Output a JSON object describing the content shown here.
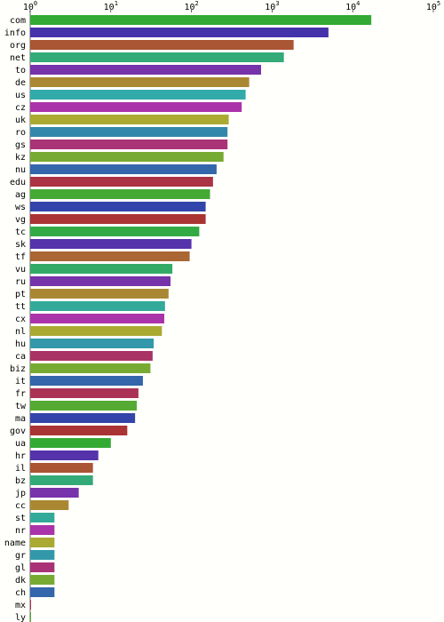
{
  "chart_data": {
    "type": "bar",
    "orientation": "horizontal",
    "x_scale": "log",
    "xlim": [
      1,
      100000
    ],
    "x_ticks": [
      {
        "base": "10",
        "exp": "0"
      },
      {
        "base": "10",
        "exp": "1"
      },
      {
        "base": "10",
        "exp": "2"
      },
      {
        "base": "10",
        "exp": "3"
      },
      {
        "base": "10",
        "exp": "4"
      },
      {
        "base": "10",
        "exp": "5"
      }
    ],
    "grid": false,
    "legend": "none",
    "title": "",
    "xlabel": "",
    "ylabel": "",
    "categories": [
      "com",
      "info",
      "org",
      "net",
      "to",
      "de",
      "us",
      "cz",
      "uk",
      "ro",
      "gs",
      "kz",
      "nu",
      "edu",
      "ag",
      "ws",
      "vg",
      "tc",
      "sk",
      "tf",
      "vu",
      "ru",
      "pt",
      "tt",
      "cx",
      "nl",
      "hu",
      "ca",
      "biz",
      "it",
      "fr",
      "tw",
      "ma",
      "gov",
      "ua",
      "hr",
      "il",
      "bz",
      "jp",
      "cc",
      "st",
      "nr",
      "name",
      "gr",
      "gl",
      "dk",
      "ch",
      "mx",
      "ly"
    ],
    "values": [
      17000,
      5000,
      1850,
      1400,
      730,
      520,
      470,
      420,
      290,
      280,
      280,
      250,
      205,
      185,
      170,
      150,
      150,
      125,
      100,
      95,
      58,
      55,
      52,
      47,
      46,
      43,
      34,
      33,
      31,
      25,
      22,
      21,
      20,
      16,
      10,
      7,
      6,
      6,
      4,
      3,
      2,
      2,
      2,
      2,
      2,
      2,
      2,
      1,
      1
    ],
    "colors": [
      "#33aa33",
      "#4433aa",
      "#aa5533",
      "#33aa77",
      "#7733aa",
      "#aa8833",
      "#33aaaa",
      "#aa33aa",
      "#aaaa33",
      "#3388aa",
      "#aa3377",
      "#77aa33",
      "#3366aa",
      "#aa3344",
      "#44aa33",
      "#3344aa",
      "#aa3333",
      "#33aa44",
      "#5533aa",
      "#aa6633",
      "#33aa66",
      "#7733aa",
      "#aa8833",
      "#33aa99",
      "#aa33aa",
      "#aaaa33",
      "#3399aa",
      "#aa3366",
      "#77aa33",
      "#3366aa",
      "#aa3355",
      "#55aa33",
      "#3344aa",
      "#aa3333",
      "#33aa33",
      "#5533aa",
      "#aa5533",
      "#33aa77",
      "#7733aa",
      "#aa8833",
      "#33aa99",
      "#aa33aa",
      "#aaaa33",
      "#3399aa",
      "#aa3377",
      "#77aa33",
      "#3366aa",
      "#aa3355",
      "#55aa33"
    ]
  }
}
